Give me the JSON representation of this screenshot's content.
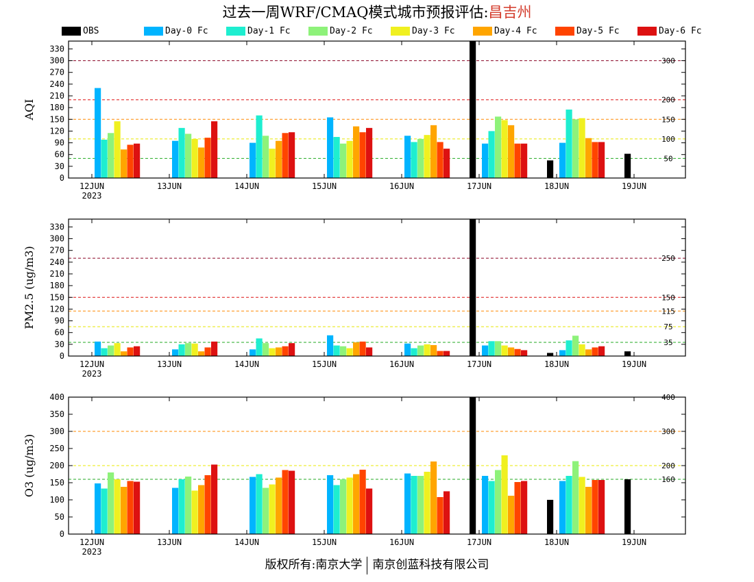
{
  "header": {
    "title_prefix": "过去一周WRF/CMAQ模式城市预报评估:",
    "city": "昌吉州"
  },
  "legend": [
    {
      "name": "OBS",
      "color": "#000000"
    },
    {
      "name": "Day-0 Fc",
      "color": "#00b4ff"
    },
    {
      "name": "Day-1 Fc",
      "color": "#1eeed0"
    },
    {
      "name": "Day-2 Fc",
      "color": "#8ef27a"
    },
    {
      "name": "Day-3 Fc",
      "color": "#f0f020"
    },
    {
      "name": "Day-4 Fc",
      "color": "#ffa500"
    },
    {
      "name": "Day-5 Fc",
      "color": "#ff4400"
    },
    {
      "name": "Day-6 Fc",
      "color": "#dd1111"
    }
  ],
  "footer": {
    "left": "版权所有:南京大学",
    "right": "南京创蓝科技有限公司"
  },
  "chart_data": [
    {
      "type": "bar",
      "ylabel": "AQI",
      "ylim": [
        0,
        350
      ],
      "yticks": [
        0,
        30,
        60,
        90,
        120,
        150,
        180,
        210,
        240,
        270,
        300,
        330
      ],
      "categories": [
        "12JUN",
        "13JUN",
        "14JUN",
        "15JUN",
        "16JUN",
        "17JUN",
        "18JUN",
        "19JUN"
      ],
      "year_label": "2023",
      "reference_lines": [
        {
          "value": 50,
          "label": "50",
          "color": "#22aa22"
        },
        {
          "value": 100,
          "label": "100",
          "color": "#e8e800"
        },
        {
          "value": 150,
          "label": "150",
          "color": "#ff8800"
        },
        {
          "value": 200,
          "label": "200",
          "color": "#dd1111"
        },
        {
          "value": 300,
          "label": "300",
          "color": "#880022"
        }
      ],
      "series": [
        {
          "name": "OBS",
          "values": [
            null,
            null,
            null,
            null,
            null,
            350,
            45,
            62
          ]
        },
        {
          "name": "Day-0 Fc",
          "values": [
            230,
            95,
            90,
            155,
            108,
            88,
            90,
            null
          ]
        },
        {
          "name": "Day-1 Fc",
          "values": [
            98,
            128,
            160,
            105,
            92,
            120,
            175,
            null
          ]
        },
        {
          "name": "Day-2 Fc",
          "values": [
            115,
            113,
            108,
            88,
            100,
            157,
            150,
            null
          ]
        },
        {
          "name": "Day-3 Fc",
          "values": [
            145,
            100,
            75,
            95,
            110,
            148,
            153,
            null
          ]
        },
        {
          "name": "Day-4 Fc",
          "values": [
            73,
            78,
            95,
            132,
            135,
            135,
            102,
            null
          ]
        },
        {
          "name": "Day-5 Fc",
          "values": [
            85,
            103,
            115,
            117,
            92,
            88,
            92,
            null
          ]
        },
        {
          "name": "Day-6 Fc",
          "values": [
            88,
            145,
            117,
            128,
            75,
            88,
            92,
            null
          ]
        }
      ]
    },
    {
      "type": "bar",
      "ylabel": "PM2.5 (ug/m3)",
      "ylim": [
        0,
        350
      ],
      "yticks": [
        0,
        30,
        60,
        90,
        120,
        150,
        180,
        210,
        240,
        270,
        300,
        330
      ],
      "categories": [
        "12JUN",
        "13JUN",
        "14JUN",
        "15JUN",
        "16JUN",
        "17JUN",
        "18JUN",
        "19JUN"
      ],
      "year_label": "2023",
      "reference_lines": [
        {
          "value": 35,
          "label": "35",
          "color": "#22aa22"
        },
        {
          "value": 75,
          "label": "75",
          "color": "#e8e800"
        },
        {
          "value": 115,
          "label": "115",
          "color": "#ff8800"
        },
        {
          "value": 150,
          "label": "150",
          "color": "#dd1111"
        },
        {
          "value": 250,
          "label": "250",
          "color": "#880022"
        }
      ],
      "series": [
        {
          "name": "OBS",
          "values": [
            null,
            null,
            null,
            null,
            null,
            350,
            8,
            12
          ]
        },
        {
          "name": "Day-0 Fc",
          "values": [
            37,
            17,
            17,
            53,
            32,
            27,
            15,
            null
          ]
        },
        {
          "name": "Day-1 Fc",
          "values": [
            20,
            30,
            45,
            27,
            20,
            38,
            40,
            null
          ]
        },
        {
          "name": "Day-2 Fc",
          "values": [
            27,
            33,
            33,
            25,
            27,
            38,
            52,
            null
          ]
        },
        {
          "name": "Day-3 Fc",
          "values": [
            33,
            32,
            20,
            20,
            30,
            27,
            30,
            null
          ]
        },
        {
          "name": "Day-4 Fc",
          "values": [
            12,
            12,
            22,
            35,
            28,
            22,
            17,
            null
          ]
        },
        {
          "name": "Day-5 Fc",
          "values": [
            22,
            22,
            25,
            37,
            13,
            18,
            22,
            null
          ]
        },
        {
          "name": "Day-6 Fc",
          "values": [
            25,
            37,
            33,
            22,
            13,
            15,
            25,
            null
          ]
        }
      ]
    },
    {
      "type": "bar",
      "ylabel": "O3 (ug/m3)",
      "ylim": [
        0,
        400
      ],
      "yticks": [
        0,
        50,
        100,
        150,
        200,
        250,
        300,
        350,
        400
      ],
      "categories": [
        "12JUN",
        "13JUN",
        "14JUN",
        "15JUN",
        "16JUN",
        "17JUN",
        "18JUN",
        "19JUN"
      ],
      "year_label": "2023",
      "reference_lines": [
        {
          "value": 160,
          "label": "160",
          "color": "#22aa22"
        },
        {
          "value": 200,
          "label": "200",
          "color": "#e8e800"
        },
        {
          "value": 300,
          "label": "300",
          "color": "#ff8800"
        },
        {
          "value": 400,
          "label": "400",
          "color": "#dd1111"
        }
      ],
      "series": [
        {
          "name": "OBS",
          "values": [
            null,
            null,
            null,
            null,
            null,
            400,
            100,
            160
          ]
        },
        {
          "name": "Day-0 Fc",
          "values": [
            148,
            135,
            167,
            172,
            177,
            170,
            155,
            null
          ]
        },
        {
          "name": "Day-1 Fc",
          "values": [
            133,
            160,
            175,
            143,
            170,
            155,
            170,
            null
          ]
        },
        {
          "name": "Day-2 Fc",
          "values": [
            180,
            168,
            135,
            160,
            170,
            187,
            213,
            null
          ]
        },
        {
          "name": "Day-3 Fc",
          "values": [
            160,
            127,
            145,
            165,
            182,
            230,
            167,
            null
          ]
        },
        {
          "name": "Day-4 Fc",
          "values": [
            138,
            143,
            165,
            175,
            212,
            112,
            138,
            null
          ]
        },
        {
          "name": "Day-5 Fc",
          "values": [
            155,
            172,
            187,
            188,
            108,
            152,
            158,
            null
          ]
        },
        {
          "name": "Day-6 Fc",
          "values": [
            153,
            203,
            185,
            133,
            125,
            155,
            158,
            null
          ]
        }
      ]
    }
  ]
}
